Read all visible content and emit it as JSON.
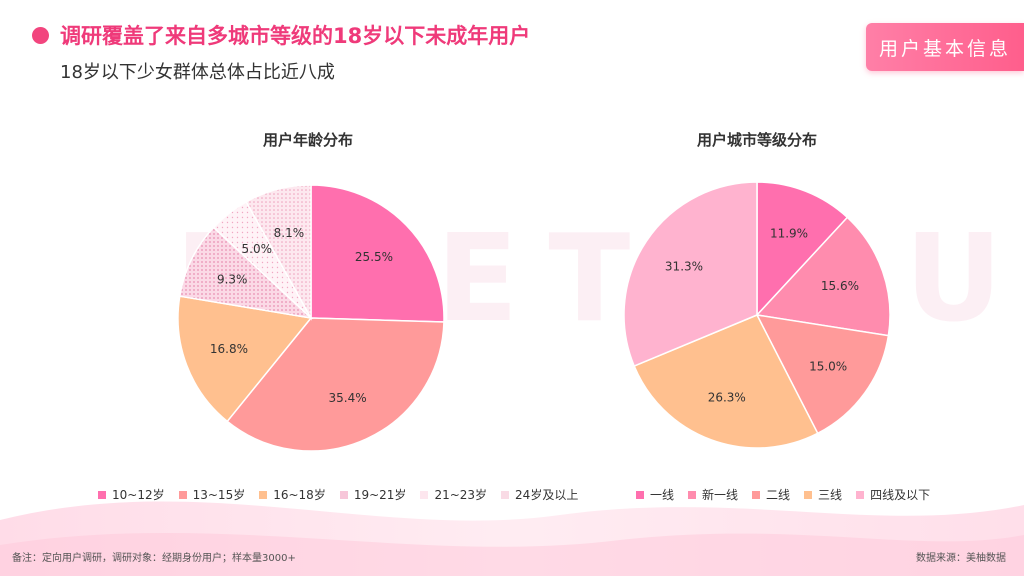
{
  "header": {
    "title": "调研覆盖了来自多城市等级的18岁以下未成年用户",
    "subtitle": "18岁以下少女群体总体占比近八成",
    "badge": "用户基本信息"
  },
  "colors": {
    "accent": "#ef3a7a",
    "badge": "#ff6a93"
  },
  "chart_data": [
    {
      "type": "pie",
      "title": "用户年龄分布",
      "categories": [
        "10~12岁",
        "13~15岁",
        "16~18岁",
        "19~21岁",
        "21~23岁",
        "24岁及以上"
      ],
      "values": [
        25.5,
        35.4,
        16.8,
        9.3,
        5.0,
        8.1
      ],
      "labels": [
        "25.5%",
        "35.4%",
        "16.8%",
        "9.3%",
        "5.0%",
        "8.1%"
      ],
      "colors": [
        "#ff6fae",
        "#ff9a9a",
        "#ffc08f",
        "#f7c6d9",
        "#fde6ee",
        "#f9dbe5"
      ],
      "legend_position": "bottom"
    },
    {
      "type": "pie",
      "title": "用户城市等级分布",
      "categories": [
        "一线",
        "新一线",
        "二线",
        "三线",
        "四线及以下"
      ],
      "values": [
        11.9,
        15.6,
        15.0,
        26.3,
        31.3
      ],
      "labels": [
        "11.9%",
        "15.6%",
        "15.0%",
        "26.3%",
        "31.3%"
      ],
      "colors": [
        "#ff6fae",
        "#ff8cae",
        "#ff9a9a",
        "#ffc08f",
        "#ffb3cf"
      ],
      "legend_position": "bottom"
    }
  ],
  "footer": {
    "note": "备注：定向用户调研，调研对象：经期身份用户；样本量3000+",
    "source": "数据来源：美柚数据"
  }
}
